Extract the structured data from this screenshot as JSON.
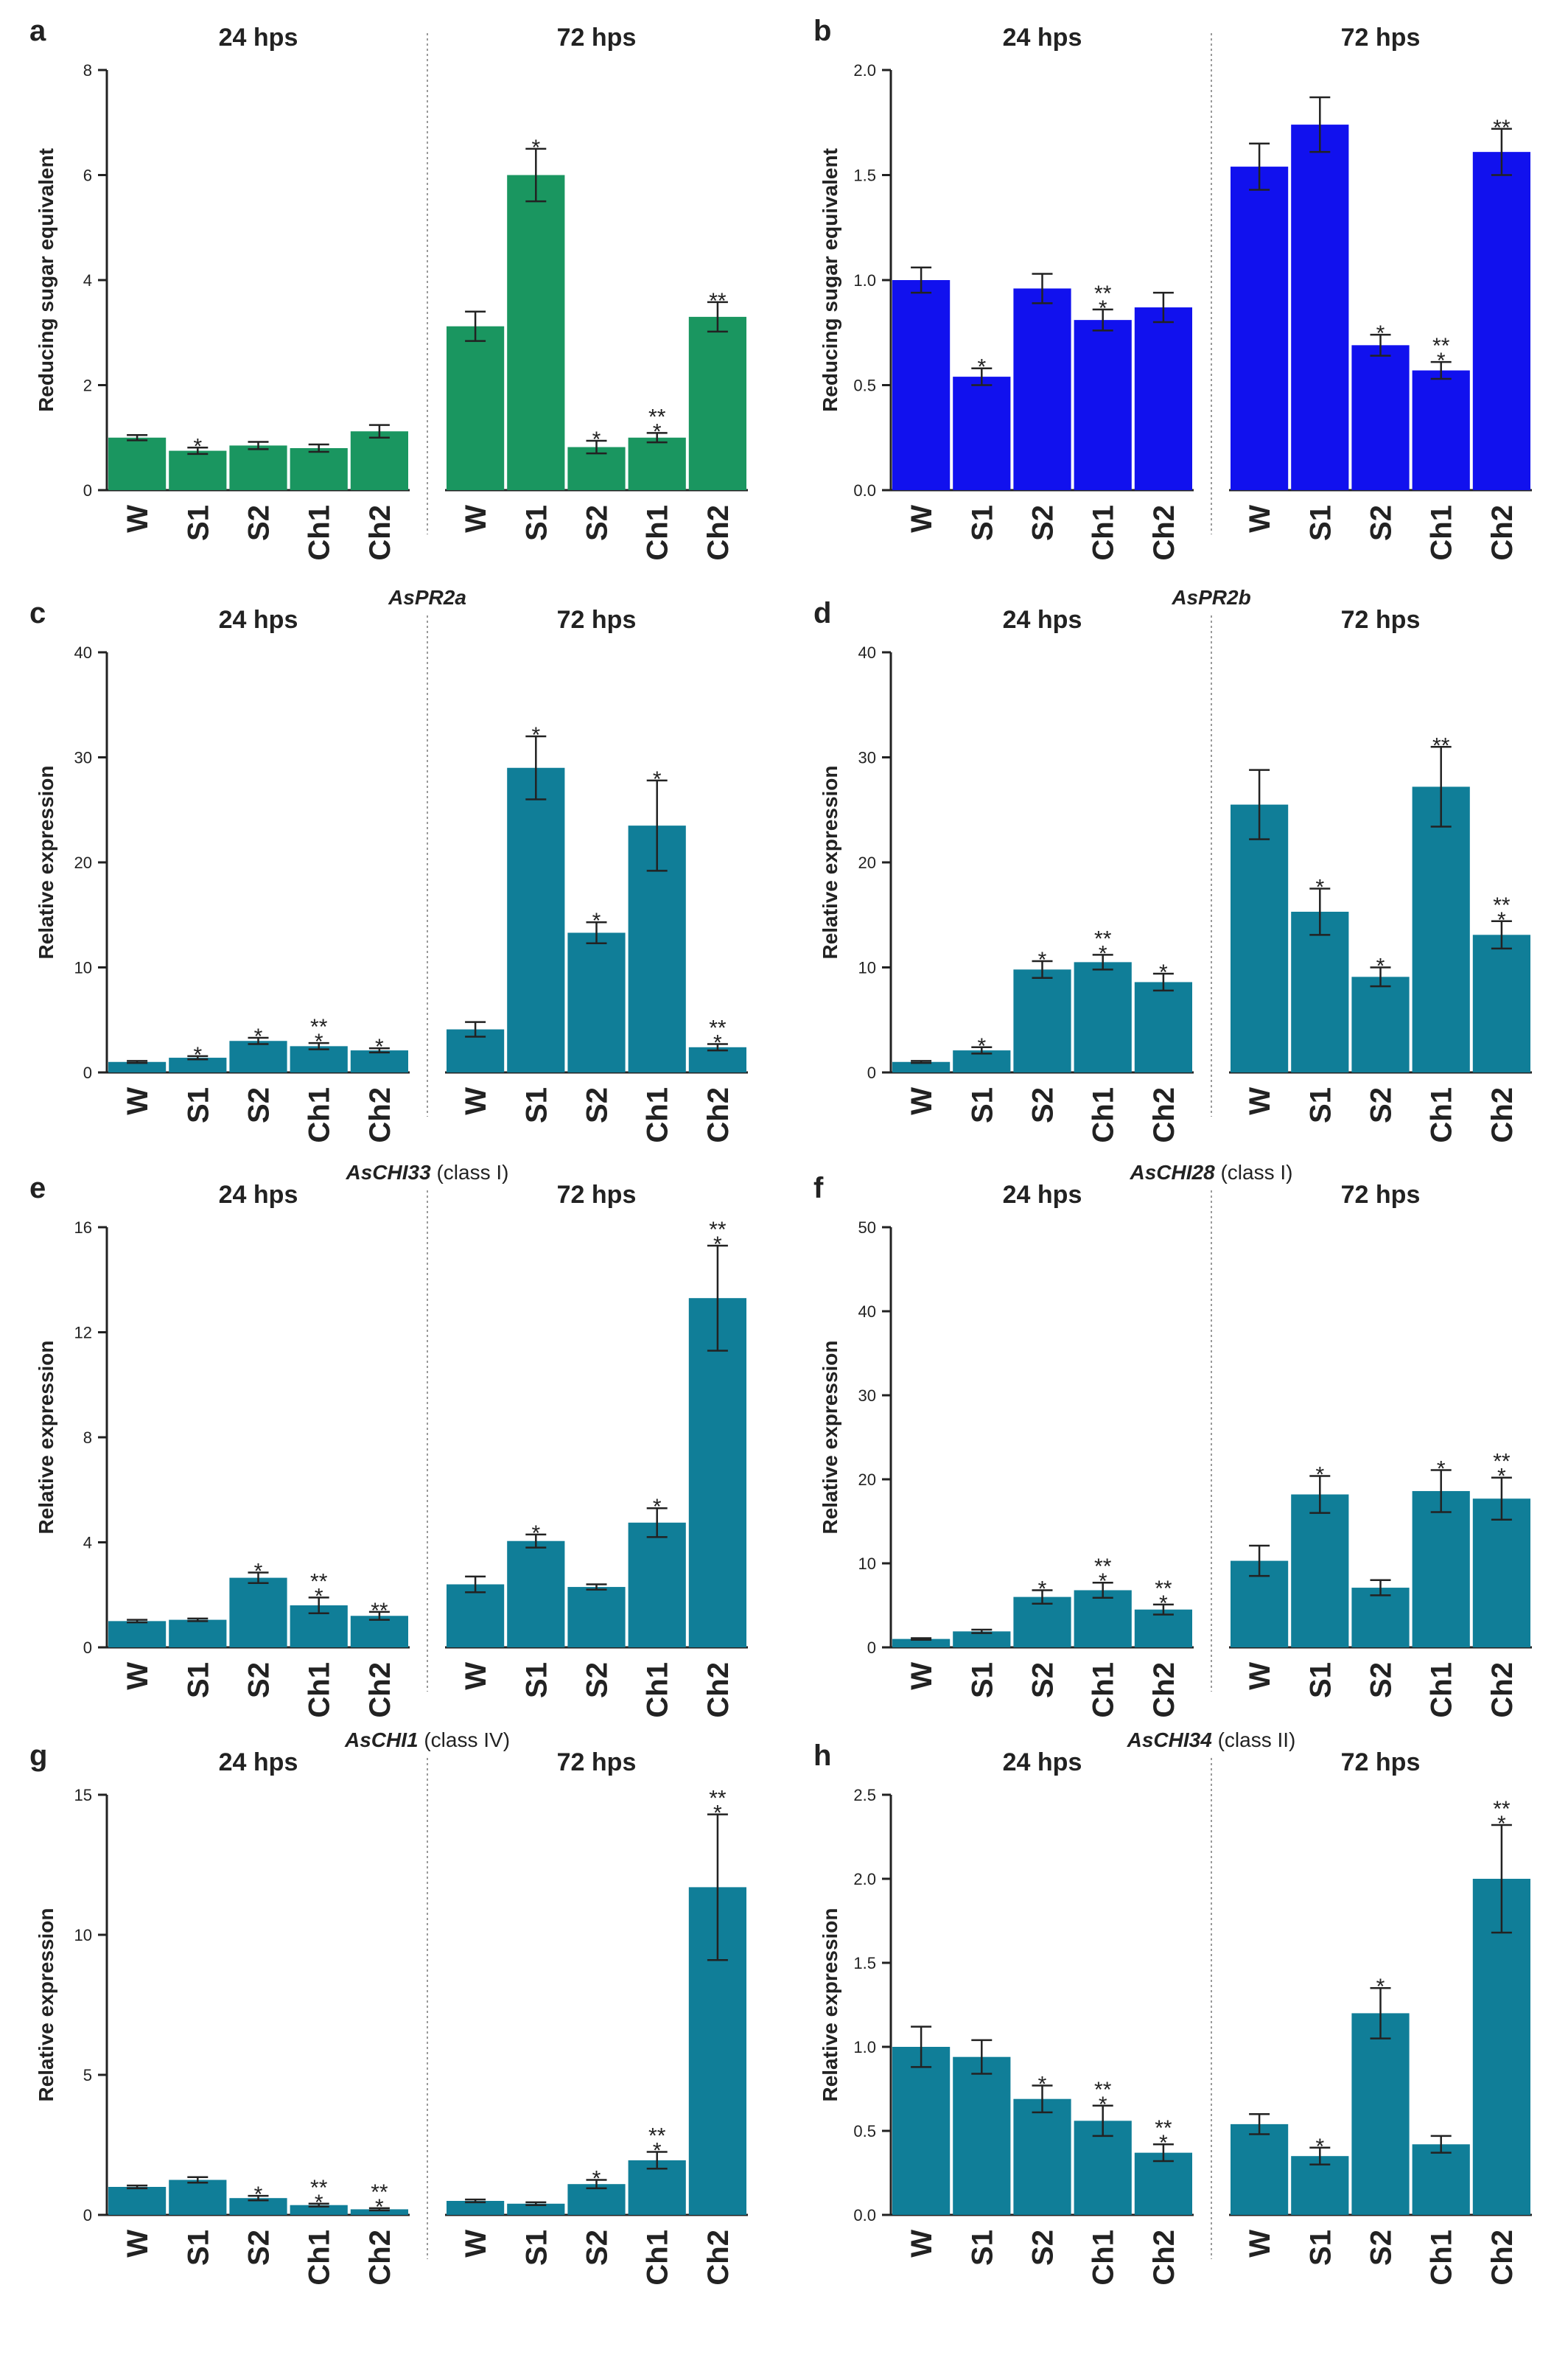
{
  "figure": {
    "colors": {
      "green": "#1a9660",
      "blue": "#1111ee",
      "teal": "#107e98",
      "axis": "#222222",
      "text": "#222222",
      "divider": "#9a9a9a"
    }
  },
  "chart_data": [
    {
      "panel": "a",
      "title": "",
      "subtitle": "",
      "type": "bar",
      "color_key": "green",
      "ylabel": "Reducing sugar equivalent",
      "ylim": [
        0,
        8
      ],
      "yticks": [
        "0",
        "2",
        "4",
        "6",
        "8"
      ],
      "groups": [
        {
          "label": "24 hps",
          "categories": [
            "W",
            "S1",
            "S2",
            "Ch1",
            "Ch2"
          ],
          "values": [
            1.0,
            0.75,
            0.85,
            0.8,
            1.12
          ],
          "errors": [
            0.05,
            0.06,
            0.07,
            0.07,
            0.12
          ],
          "annotations": [
            "",
            "*",
            "",
            "",
            ""
          ]
        },
        {
          "label": "72 hps",
          "categories": [
            "W",
            "S1",
            "S2",
            "Ch1",
            "Ch2"
          ],
          "values": [
            3.12,
            6.0,
            0.82,
            1.0,
            3.3
          ],
          "errors": [
            0.28,
            0.5,
            0.12,
            0.09,
            0.28
          ],
          "annotations": [
            "",
            "*",
            "*",
            "**\n*",
            "**"
          ]
        }
      ]
    },
    {
      "panel": "b",
      "title": "",
      "subtitle": "",
      "type": "bar",
      "color_key": "blue",
      "ylabel": "Reducing sugar equivalent",
      "ylim": [
        0,
        2
      ],
      "yticks": [
        "0.0",
        "0.5",
        "1.0",
        "1.5",
        "2.0"
      ],
      "groups": [
        {
          "label": "24 hps",
          "categories": [
            "W",
            "S1",
            "S2",
            "Ch1",
            "Ch2"
          ],
          "values": [
            1.0,
            0.54,
            0.96,
            0.81,
            0.87
          ],
          "errors": [
            0.06,
            0.04,
            0.07,
            0.05,
            0.07
          ],
          "annotations": [
            "",
            "*",
            "",
            "**\n*",
            ""
          ]
        },
        {
          "label": "72 hps",
          "categories": [
            "W",
            "S1",
            "S2",
            "Ch1",
            "Ch2"
          ],
          "values": [
            1.54,
            1.74,
            0.69,
            0.57,
            1.61
          ],
          "errors": [
            0.11,
            0.13,
            0.05,
            0.04,
            0.11
          ],
          "annotations": [
            "",
            "",
            "*",
            "**\n*",
            "**"
          ]
        }
      ]
    },
    {
      "panel": "c",
      "title": "AsPR2a",
      "subtitle": "",
      "type": "bar",
      "color_key": "teal",
      "ylabel": "Relative expression",
      "ylim": [
        0,
        40
      ],
      "yticks": [
        "0",
        "10",
        "20",
        "30",
        "40"
      ],
      "groups": [
        {
          "label": "24 hps",
          "categories": [
            "W",
            "S1",
            "S2",
            "Ch1",
            "Ch2"
          ],
          "values": [
            1.0,
            1.4,
            3.0,
            2.5,
            2.1
          ],
          "errors": [
            0.1,
            0.15,
            0.3,
            0.3,
            0.2
          ],
          "annotations": [
            "",
            "*",
            "*",
            "**\n*",
            "*"
          ]
        },
        {
          "label": "72 hps",
          "categories": [
            "W",
            "S1",
            "S2",
            "Ch1",
            "Ch2"
          ],
          "values": [
            4.1,
            29.0,
            13.3,
            23.5,
            2.4
          ],
          "errors": [
            0.7,
            3.0,
            1.0,
            4.3,
            0.3
          ],
          "annotations": [
            "",
            "*",
            "*",
            "*",
            "**\n*"
          ]
        }
      ]
    },
    {
      "panel": "d",
      "title": "AsPR2b",
      "subtitle": "",
      "type": "bar",
      "color_key": "teal",
      "ylabel": "Relative expression",
      "ylim": [
        0,
        40
      ],
      "yticks": [
        "0",
        "10",
        "20",
        "30",
        "40"
      ],
      "groups": [
        {
          "label": "24 hps",
          "categories": [
            "W",
            "S1",
            "S2",
            "Ch1",
            "Ch2"
          ],
          "values": [
            1.0,
            2.1,
            9.8,
            10.5,
            8.6
          ],
          "errors": [
            0.1,
            0.3,
            0.8,
            0.7,
            0.8
          ],
          "annotations": [
            "",
            "*",
            "*",
            "**\n*",
            "*"
          ]
        },
        {
          "label": "72 hps",
          "categories": [
            "W",
            "S1",
            "S2",
            "Ch1",
            "Ch2"
          ],
          "values": [
            25.5,
            15.3,
            9.1,
            27.2,
            13.1
          ],
          "errors": [
            3.3,
            2.2,
            0.9,
            3.8,
            1.3
          ],
          "annotations": [
            "",
            "*",
            "*",
            "**",
            "**\n*"
          ]
        }
      ]
    },
    {
      "panel": "e",
      "title": "AsCHI33",
      "subtitle": "(class I)",
      "type": "bar",
      "color_key": "teal",
      "ylabel": "Relative expression",
      "ylim": [
        0,
        16
      ],
      "yticks": [
        "0",
        "4",
        "8",
        "12",
        "16"
      ],
      "groups": [
        {
          "label": "24 hps",
          "categories": [
            "W",
            "S1",
            "S2",
            "Ch1",
            "Ch2"
          ],
          "values": [
            1.0,
            1.05,
            2.65,
            1.6,
            1.2
          ],
          "errors": [
            0.05,
            0.05,
            0.2,
            0.3,
            0.15
          ],
          "annotations": [
            "",
            "",
            "*",
            "**\n*",
            "**"
          ]
        },
        {
          "label": "72 hps",
          "categories": [
            "W",
            "S1",
            "S2",
            "Ch1",
            "Ch2"
          ],
          "values": [
            2.4,
            4.05,
            2.3,
            4.75,
            13.3
          ],
          "errors": [
            0.3,
            0.25,
            0.1,
            0.55,
            2.0
          ],
          "annotations": [
            "",
            "*",
            "",
            "*",
            "**\n*"
          ]
        }
      ]
    },
    {
      "panel": "f",
      "title": "AsCHI28",
      "subtitle": "(class I)",
      "type": "bar",
      "color_key": "teal",
      "ylabel": "Relative expression",
      "ylim": [
        0,
        50
      ],
      "yticks": [
        "0",
        "10",
        "20",
        "30",
        "40",
        "50"
      ],
      "groups": [
        {
          "label": "24 hps",
          "categories": [
            "W",
            "S1",
            "S2",
            "Ch1",
            "Ch2"
          ],
          "values": [
            1.0,
            1.9,
            6.0,
            6.8,
            4.5
          ],
          "errors": [
            0.1,
            0.2,
            0.8,
            0.9,
            0.6
          ],
          "annotations": [
            "",
            "",
            "*",
            "**\n*",
            "**\n*"
          ]
        },
        {
          "label": "72 hps",
          "categories": [
            "W",
            "S1",
            "S2",
            "Ch1",
            "Ch2"
          ],
          "values": [
            10.3,
            18.2,
            7.1,
            18.6,
            17.7
          ],
          "errors": [
            1.8,
            2.2,
            0.9,
            2.5,
            2.5
          ],
          "annotations": [
            "",
            "*",
            "",
            "*",
            "**\n*"
          ]
        }
      ]
    },
    {
      "panel": "g",
      "title": "AsCHI1",
      "subtitle": "(class IV)",
      "type": "bar",
      "color_key": "teal",
      "ylabel": "Relative expression",
      "ylim": [
        0,
        15
      ],
      "yticks": [
        "0",
        "5",
        "10",
        "15"
      ],
      "groups": [
        {
          "label": "24 hps",
          "categories": [
            "W",
            "S1",
            "S2",
            "Ch1",
            "Ch2"
          ],
          "values": [
            1.0,
            1.25,
            0.6,
            0.35,
            0.2
          ],
          "errors": [
            0.05,
            0.1,
            0.08,
            0.05,
            0.04
          ],
          "annotations": [
            "",
            "",
            "*",
            "**\n*",
            "**\n*"
          ]
        },
        {
          "label": "72 hps",
          "categories": [
            "W",
            "S1",
            "S2",
            "Ch1",
            "Ch2"
          ],
          "values": [
            0.5,
            0.4,
            1.1,
            1.95,
            11.7
          ],
          "errors": [
            0.05,
            0.05,
            0.15,
            0.3,
            2.6
          ],
          "annotations": [
            "",
            "",
            "*",
            "**\n*",
            "**\n*"
          ]
        }
      ]
    },
    {
      "panel": "h",
      "title": "AsCHI34",
      "subtitle": "(class II)",
      "type": "bar",
      "color_key": "teal",
      "ylabel": "Relative expression",
      "ylim": [
        0,
        2.5
      ],
      "yticks": [
        "0.0",
        "0.5",
        "1.0",
        "1.5",
        "2.0",
        "2.5"
      ],
      "groups": [
        {
          "label": "24 hps",
          "categories": [
            "W",
            "S1",
            "S2",
            "Ch1",
            "Ch2"
          ],
          "values": [
            1.0,
            0.94,
            0.69,
            0.56,
            0.37
          ],
          "errors": [
            0.12,
            0.1,
            0.08,
            0.09,
            0.05
          ],
          "annotations": [
            "",
            "",
            "*",
            "**\n*",
            "**\n*"
          ]
        },
        {
          "label": "72 hps",
          "categories": [
            "W",
            "S1",
            "S2",
            "Ch1",
            "Ch2"
          ],
          "values": [
            0.54,
            0.35,
            1.2,
            0.42,
            2.0
          ],
          "errors": [
            0.06,
            0.05,
            0.15,
            0.05,
            0.32
          ],
          "annotations": [
            "",
            "*",
            "*",
            "",
            "**\n*"
          ]
        }
      ]
    }
  ]
}
